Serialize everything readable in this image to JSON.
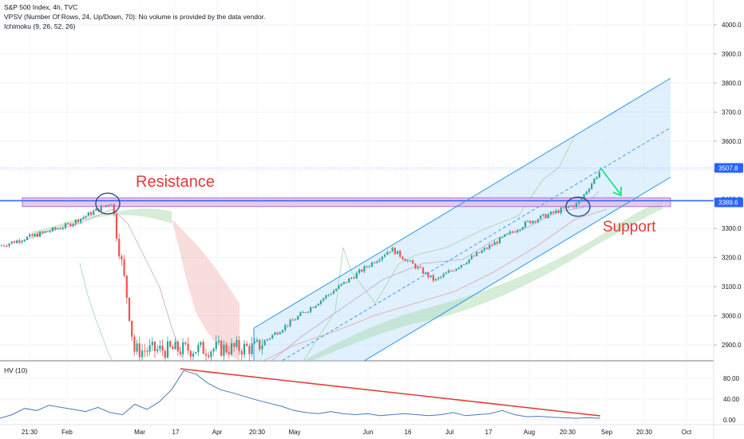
{
  "chart_data": [
    {
      "type": "candlestick",
      "title": "S&P 500 Index, 4h, TVC",
      "indicators": [
        "VPSV (Number Of Rows, 24, Up/Down, 70): No volume is provided by the data vendor.",
        "Ichimoku (9, 26, 52, 26)"
      ],
      "x_ticks": [
        "21:30",
        "Feb",
        "Mar",
        "17",
        "Apr",
        "20:30",
        "May",
        "Jun",
        "16",
        "Jul",
        "17",
        "Aug",
        "20:30",
        "Sep",
        "20:30",
        "Oct"
      ],
      "y_ticks": [
        4000.0,
        3900.0,
        3800.0,
        3700.0,
        3600.0,
        3500.0,
        3400.0,
        3300.0,
        3200.0,
        3100.0,
        3000.0,
        2900.0
      ],
      "ylim": [
        2870,
        4060
      ],
      "price_labels": [
        {
          "value": 3507.8,
          "text": "3507.8",
          "color": "#2962ff"
        },
        {
          "value": 3389.6,
          "text": "3389.6",
          "color": "#2962ff"
        }
      ],
      "close_path": [
        {
          "x": "21:30",
          "y": 3240
        },
        {
          "x": "Feb",
          "y": 3310
        },
        {
          "x": "Feb (Feb 19 high)",
          "y": 3390
        },
        {
          "x": "Mar",
          "y": 3050
        },
        {
          "x": "Mar (low)",
          "y": 2880
        },
        {
          "x": "May",
          "y": 2890
        },
        {
          "x": "Jun",
          "y": 3230
        },
        {
          "x": "Jul",
          "y": 3120
        },
        {
          "x": "Aug",
          "y": 3320
        },
        {
          "x": "20:30",
          "y": 3385
        },
        {
          "x": "Sep",
          "y": 3500
        }
      ],
      "annotations": {
        "resistance_label": "Resistance",
        "support_label": "Support",
        "horizontal_zone": [
          3375,
          3405
        ],
        "channel": {
          "upper": [
            3655,
            3815
          ],
          "lower": [
            2840,
            3470
          ],
          "mid": [
            2890,
            3640
          ]
        },
        "arrow": "down",
        "colors": {
          "label": "#e53935",
          "arrow": "#00e676",
          "channel": "#2196f3",
          "zone": "#b388ff",
          "ellipse": "#1e3a8a"
        }
      }
    },
    {
      "type": "line",
      "title": "HV (10)",
      "y_ticks": [
        80.0,
        40.0,
        0.0
      ],
      "ylim": [
        -4,
        100
      ],
      "series": [
        {
          "name": "HV (10)",
          "color": "#4a7ab5",
          "values": [
            3,
            10,
            22,
            18,
            28,
            24,
            20,
            16,
            24,
            14,
            10,
            30,
            20,
            35,
            58,
            95,
            88,
            70,
            58,
            52,
            45,
            38,
            32,
            26,
            18,
            14,
            12,
            16,
            12,
            10,
            12,
            8,
            10,
            12,
            10,
            8,
            10,
            14,
            8,
            10,
            12,
            18,
            10,
            6,
            7,
            5,
            4,
            3,
            4,
            3
          ]
        }
      ],
      "trendline": {
        "from": 95,
        "to": 5,
        "color": "#e53935"
      }
    }
  ]
}
